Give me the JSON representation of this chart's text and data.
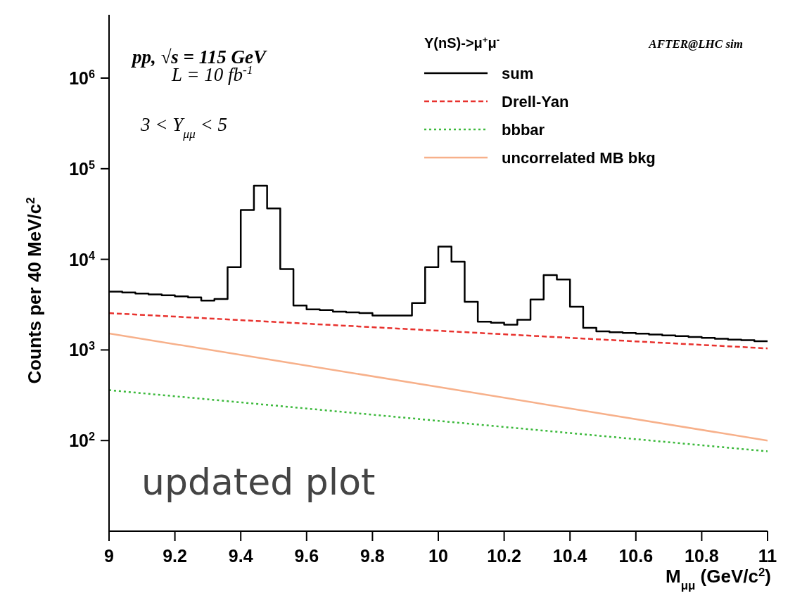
{
  "chart_data": {
    "type": "line",
    "xlabel": "M$_{μμ}$ (GeV/c$^{2}$)",
    "ylabel": "Counts per 40 MeV/c$^{2}$",
    "legend_title": "Υ(nS)->μ$^{+}$μ$^{-}$",
    "annotations": [
      "pp,  √s = 115 GeV",
      "L = 10 fb$^{-1}$",
      "3 < Y$_{μμ}$ < 5",
      "AFTER@LHC sim",
      "updated plot"
    ],
    "xlim": [
      9,
      11
    ],
    "xticks": [
      9,
      9.2,
      9.4,
      9.6,
      9.8,
      10,
      10.2,
      10.4,
      10.6,
      10.8,
      11
    ],
    "ylim": [
      10,
      5000000
    ],
    "yticks": [
      {
        "value": 100,
        "label": "10$^{2}$"
      },
      {
        "value": 1000,
        "label": "10$^{3}$"
      },
      {
        "value": 10000,
        "label": "10$^{4}$"
      },
      {
        "value": 100000,
        "label": "10$^{5}$"
      },
      {
        "value": 1000000,
        "label": "10$^{6}$"
      }
    ],
    "log": "y",
    "grid": false,
    "legend": "top right",
    "series": [
      {
        "name": "sum",
        "type": "histogram",
        "color": "#000000",
        "line_style": "solid",
        "bins": [
          9,
          9.04,
          9.08,
          9.12,
          9.16,
          9.2,
          9.24,
          9.28,
          9.32,
          9.36,
          9.4,
          9.44,
          9.48,
          9.52,
          9.56,
          9.6,
          9.64,
          9.68,
          9.72,
          9.76,
          9.8,
          9.84,
          9.88,
          9.92,
          9.96,
          10,
          10.04,
          10.08,
          10.12,
          10.16,
          10.2,
          10.24,
          10.28,
          10.32,
          10.36,
          10.4,
          10.44,
          10.48,
          10.52,
          10.56,
          10.6,
          10.64,
          10.68,
          10.72,
          10.76,
          10.8,
          10.84,
          10.88,
          10.92,
          10.96,
          11
        ],
        "values": [
          4400,
          4300,
          4200,
          4100,
          4000,
          3900,
          3800,
          3500,
          3650,
          8200,
          35000,
          65000,
          36500,
          7800,
          3100,
          2800,
          2750,
          2650,
          2600,
          2550,
          2400,
          2400,
          2400,
          3300,
          8200,
          13800,
          9400,
          3400,
          2050,
          2000,
          1900,
          2150,
          3600,
          6700,
          6000,
          3000,
          1750,
          1600,
          1570,
          1540,
          1510,
          1480,
          1450,
          1420,
          1390,
          1360,
          1330,
          1300,
          1280,
          1250
        ]
      },
      {
        "name": "Drell-Yan",
        "type": "line",
        "color": "#e8322e",
        "line_style": "dashed",
        "x": [
          9,
          9.5,
          10,
          10.5,
          11
        ],
        "values": [
          2550,
          2040,
          1630,
          1300,
          1040
        ]
      },
      {
        "name": "bbbar",
        "type": "line",
        "color": "#3cb93c",
        "line_style": "dotted",
        "x": [
          9,
          9.5,
          10,
          10.5,
          11
        ],
        "values": [
          360,
          244,
          165,
          112,
          76
        ]
      },
      {
        "name": "uncorrelated MB bkg",
        "type": "line",
        "color": "#f7b08a",
        "line_style": "solid",
        "x": [
          9,
          9.5,
          10,
          10.5,
          11
        ],
        "values": [
          1520,
          770,
          390,
          197,
          100
        ]
      }
    ]
  }
}
